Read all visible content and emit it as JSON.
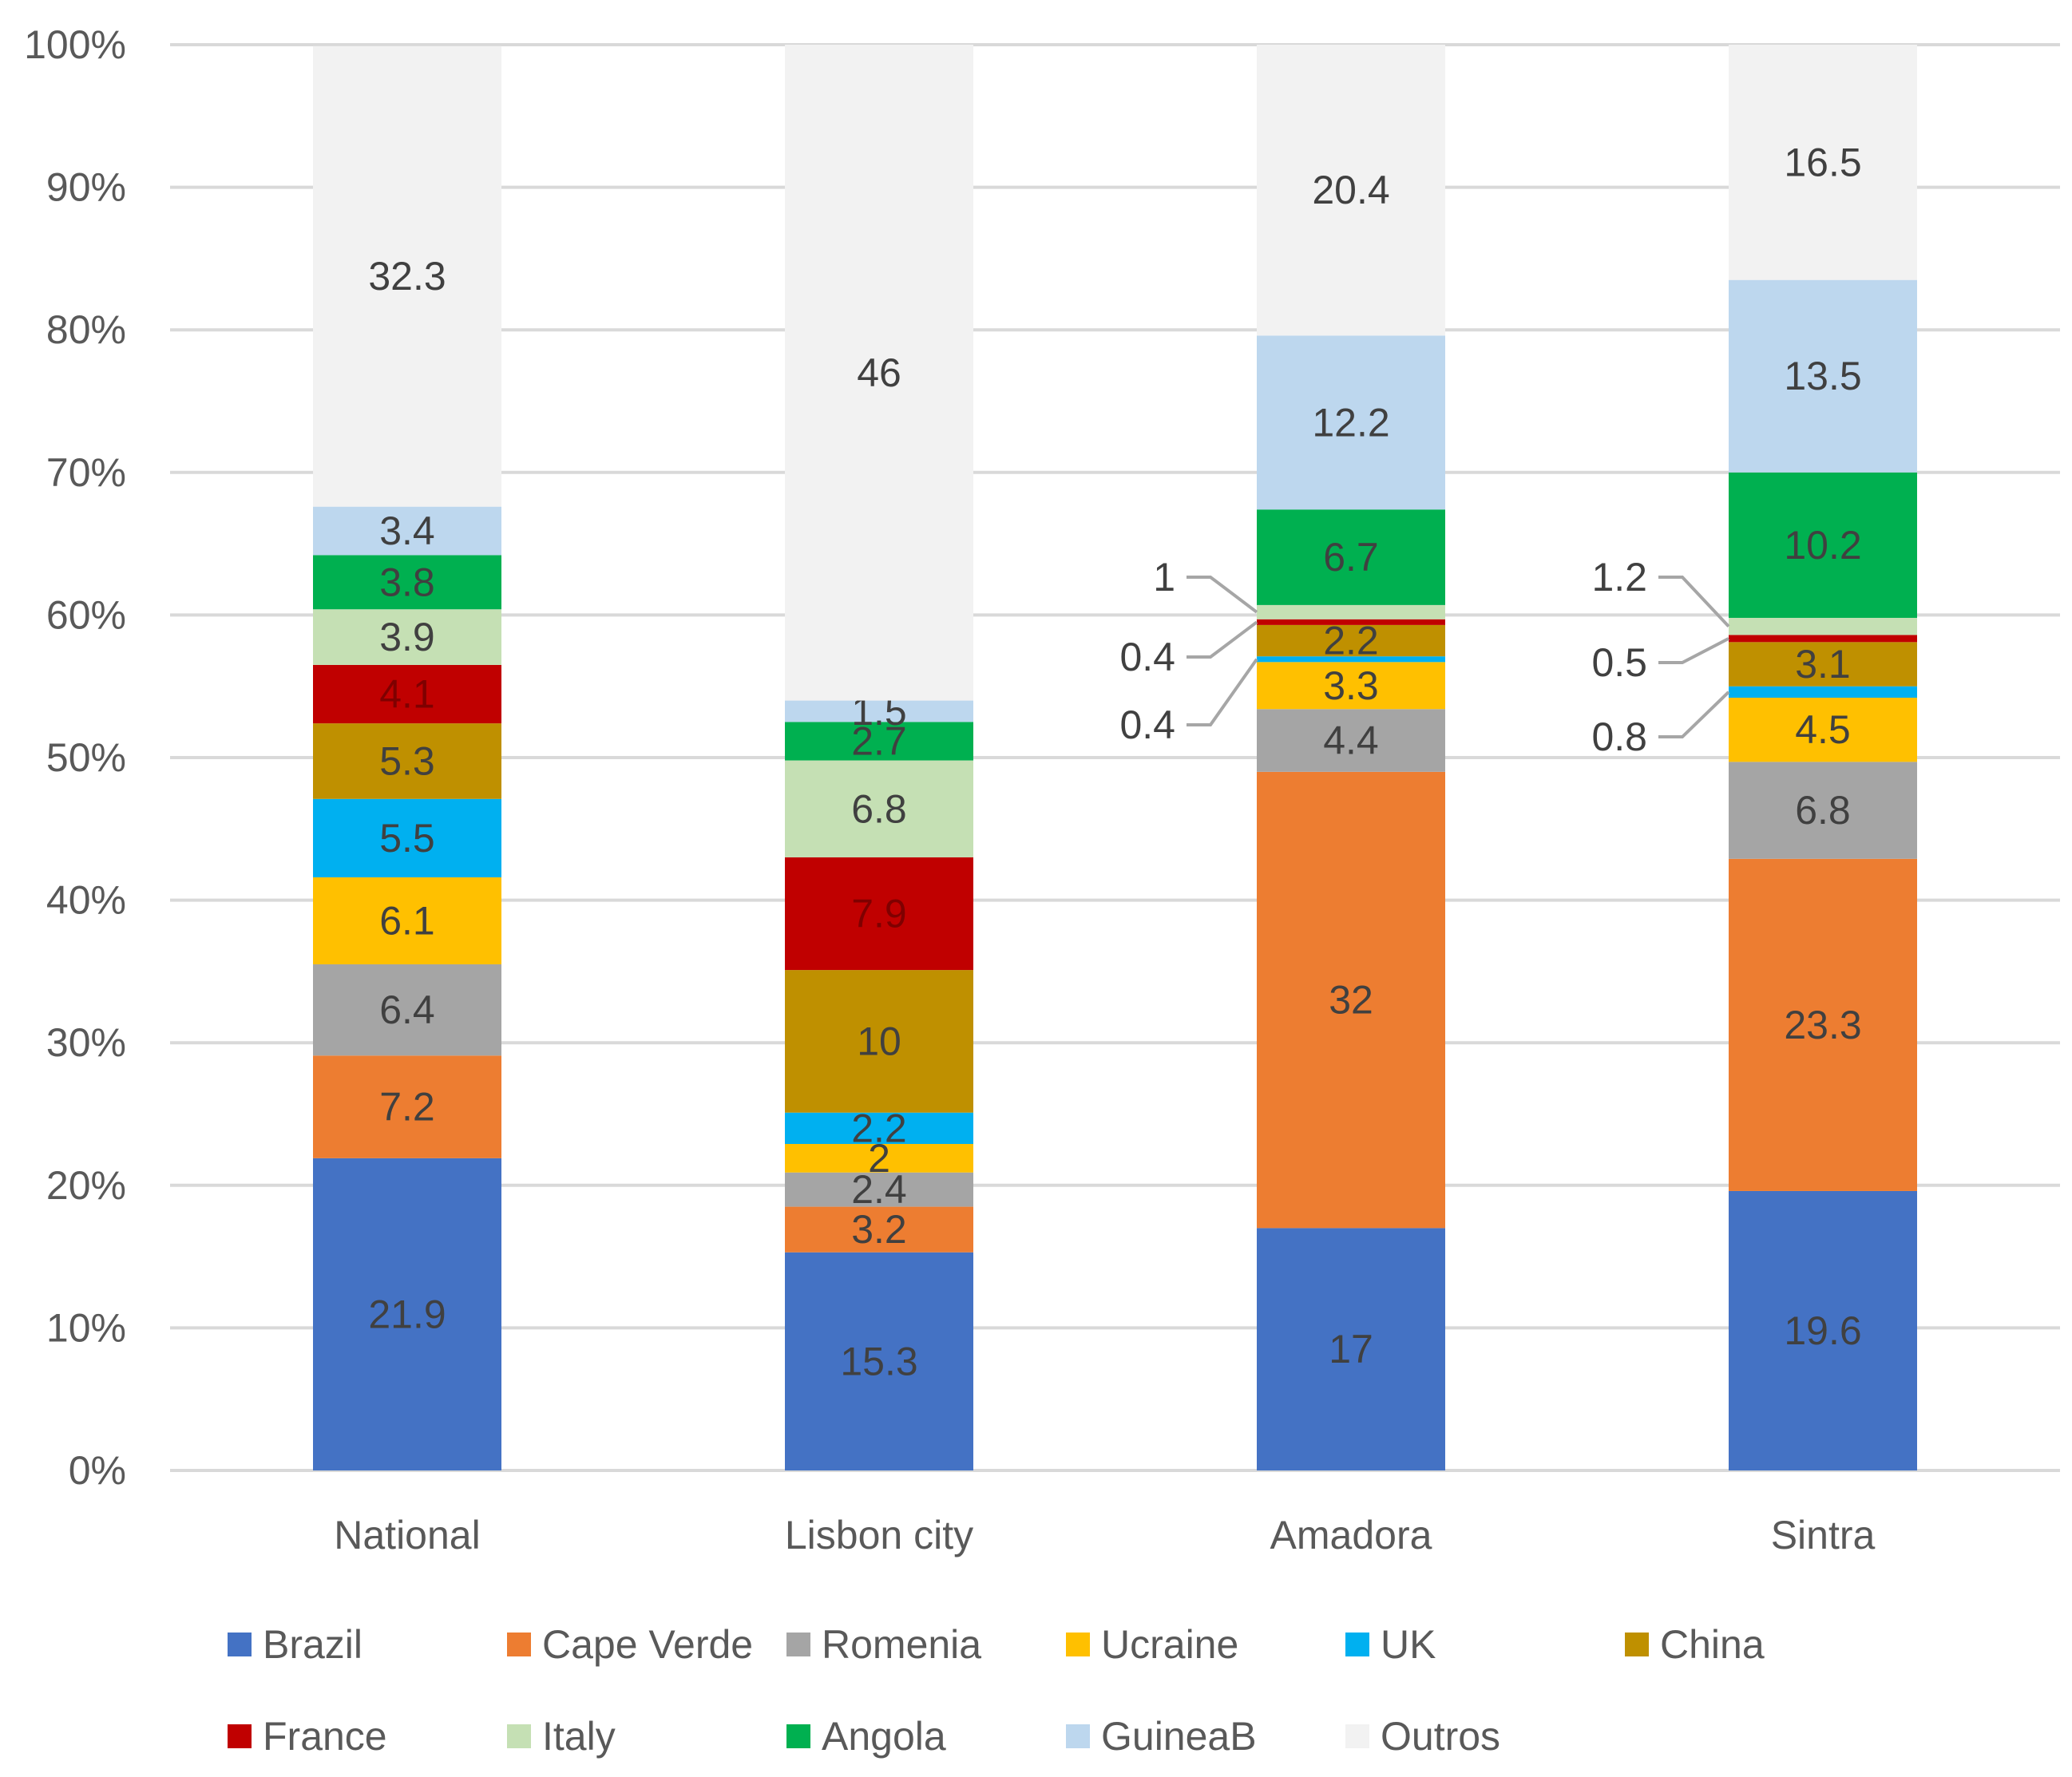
{
  "chart_data": {
    "type": "bar",
    "stacked": true,
    "title": "",
    "xlabel": "",
    "ylabel": "",
    "ylim": [
      0,
      100
    ],
    "y_tick_labels": [
      "0%",
      "10%",
      "20%",
      "30%",
      "40%",
      "50%",
      "60%",
      "70%",
      "80%",
      "90%",
      "100%"
    ],
    "categories": [
      "National",
      "Lisbon city",
      "Amadora",
      "Sintra"
    ],
    "legend_position": "bottom",
    "series": [
      {
        "name": "Brazil",
        "color": "#4472C4",
        "label_color": "#404040",
        "values": [
          21.9,
          15.3,
          17,
          19.6
        ],
        "labels": [
          "21.9",
          "15.3",
          "17",
          "19.6"
        ]
      },
      {
        "name": "Cape Verde",
        "color": "#ED7D31",
        "label_color": "#404040",
        "values": [
          7.2,
          3.2,
          32,
          23.3
        ],
        "labels": [
          "7.2",
          "3.2",
          "32",
          "23.3"
        ]
      },
      {
        "name": "Romenia",
        "color": "#A5A5A5",
        "label_color": "#404040",
        "values": [
          6.4,
          2.4,
          4.4,
          6.8
        ],
        "labels": [
          "6.4",
          "2.4",
          "4.4",
          "6.8"
        ]
      },
      {
        "name": "Ucraine",
        "color": "#FFC000",
        "label_color": "#404040",
        "values": [
          6.1,
          2,
          3.3,
          4.5
        ],
        "labels": [
          "6.1",
          "2",
          "3.3",
          "4.5"
        ]
      },
      {
        "name": "UK",
        "color": "#00B0F0",
        "label_color": "#404040",
        "values": [
          5.5,
          2.2,
          0.4,
          0.8
        ],
        "labels": [
          "5.5",
          "2.2",
          "0.4",
          "0.8"
        ],
        "callout": [
          false,
          false,
          true,
          true
        ]
      },
      {
        "name": "China",
        "color": "#BF9000",
        "label_color": "#404040",
        "values": [
          5.3,
          10,
          2.2,
          3.1
        ],
        "labels": [
          "5.3",
          "10",
          "2.2",
          "3.1"
        ]
      },
      {
        "name": "France",
        "color": "#C00000",
        "label_color": "#7F0000",
        "values": [
          4.1,
          7.9,
          0.4,
          0.5
        ],
        "labels": [
          "4.1",
          "7.9",
          "0.4",
          "0.5"
        ],
        "callout": [
          false,
          false,
          true,
          true
        ]
      },
      {
        "name": "Italy",
        "color": "#C5E0B4",
        "label_color": "#404040",
        "values": [
          3.9,
          6.8,
          1,
          1.2
        ],
        "labels": [
          "3.9",
          "6.8",
          "1",
          "1.2"
        ],
        "callout": [
          false,
          false,
          true,
          true
        ]
      },
      {
        "name": "Angola",
        "color": "#00B050",
        "label_color": "#404040",
        "values": [
          3.8,
          2.7,
          6.7,
          10.2
        ],
        "labels": [
          "3.8",
          "2.7",
          "6.7",
          "10.2"
        ]
      },
      {
        "name": "GuineaB",
        "color": "#BDD7EE",
        "label_color": "#404040",
        "values": [
          3.4,
          1.5,
          12.2,
          13.5
        ],
        "labels": [
          "3.4",
          "1.5",
          "12.2",
          "13.5"
        ]
      },
      {
        "name": "Outros",
        "color": "#F2F2F2",
        "label_color": "#404040",
        "values": [
          32.3,
          46,
          20.4,
          16.5
        ],
        "labels": [
          "32.3",
          "46",
          "20.4",
          "16.5"
        ]
      }
    ],
    "colors": {
      "gridline": "#D9D9D9",
      "axis_text": "#595959",
      "callout_line": "#A6A6A6"
    }
  }
}
